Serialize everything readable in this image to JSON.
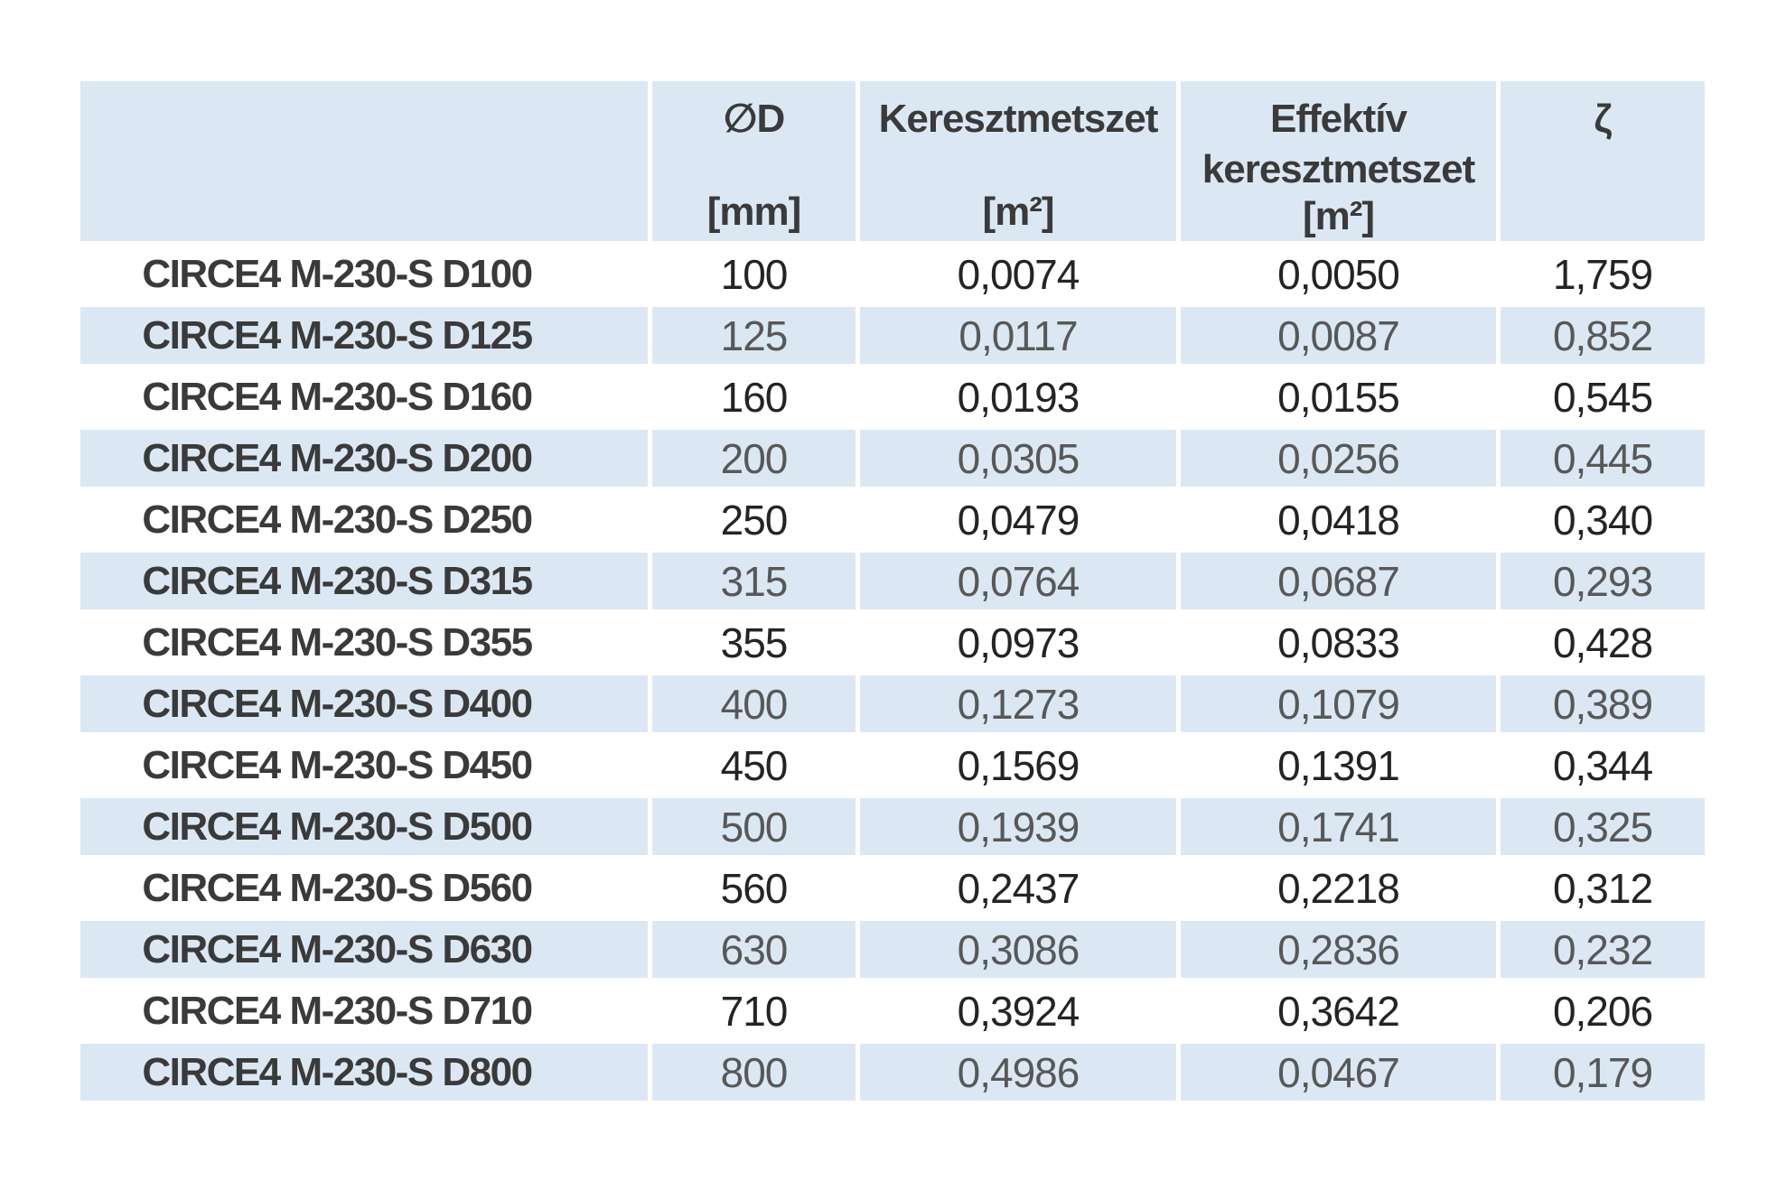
{
  "colors": {
    "row_stripe_blue": "#dbe8f4",
    "text_dark": "#242424",
    "text_gray_on_blue": "#585858",
    "heading_text": "#3a3a3a",
    "page_background": "#ffffff"
  },
  "table": {
    "columns": [
      {
        "title": "",
        "unit": ""
      },
      {
        "title": "∅D",
        "unit": "[mm]"
      },
      {
        "title": "Keresztmetszet",
        "unit": "[m²]"
      },
      {
        "title": "Effektív",
        "title2": "keresztmetszet",
        "unit": "[m²]"
      },
      {
        "title": "ζ",
        "unit": ""
      }
    ],
    "rows": [
      {
        "name": "CIRCE4 M-230-S D100",
        "d": "100",
        "cross_section": "0,0074",
        "effective_cross_section": "0,0050",
        "zeta": "1,759"
      },
      {
        "name": "CIRCE4 M-230-S D125",
        "d": "125",
        "cross_section": "0,0117",
        "effective_cross_section": "0,0087",
        "zeta": "0,852"
      },
      {
        "name": "CIRCE4 M-230-S D160",
        "d": "160",
        "cross_section": "0,0193",
        "effective_cross_section": "0,0155",
        "zeta": "0,545"
      },
      {
        "name": "CIRCE4 M-230-S D200",
        "d": "200",
        "cross_section": "0,0305",
        "effective_cross_section": "0,0256",
        "zeta": "0,445"
      },
      {
        "name": "CIRCE4 M-230-S D250",
        "d": "250",
        "cross_section": "0,0479",
        "effective_cross_section": "0,0418",
        "zeta": "0,340"
      },
      {
        "name": "CIRCE4 M-230-S D315",
        "d": "315",
        "cross_section": "0,0764",
        "effective_cross_section": "0,0687",
        "zeta": "0,293"
      },
      {
        "name": "CIRCE4 M-230-S D355",
        "d": "355",
        "cross_section": "0,0973",
        "effective_cross_section": "0,0833",
        "zeta": "0,428"
      },
      {
        "name": "CIRCE4 M-230-S D400",
        "d": "400",
        "cross_section": "0,1273",
        "effective_cross_section": "0,1079",
        "zeta": "0,389"
      },
      {
        "name": "CIRCE4 M-230-S D450",
        "d": "450",
        "cross_section": "0,1569",
        "effective_cross_section": "0,1391",
        "zeta": "0,344"
      },
      {
        "name": "CIRCE4 M-230-S D500",
        "d": "500",
        "cross_section": "0,1939",
        "effective_cross_section": "0,1741",
        "zeta": "0,325"
      },
      {
        "name": "CIRCE4 M-230-S D560",
        "d": "560",
        "cross_section": "0,2437",
        "effective_cross_section": "0,2218",
        "zeta": "0,312"
      },
      {
        "name": "CIRCE4 M-230-S D630",
        "d": "630",
        "cross_section": "0,3086",
        "effective_cross_section": "0,2836",
        "zeta": "0,232"
      },
      {
        "name": "CIRCE4 M-230-S D710",
        "d": "710",
        "cross_section": "0,3924",
        "effective_cross_section": "0,3642",
        "zeta": "0,206"
      },
      {
        "name": "CIRCE4 M-230-S D800",
        "d": "800",
        "cross_section": "0,4986",
        "effective_cross_section": "0,0467",
        "zeta": "0,179"
      }
    ]
  }
}
